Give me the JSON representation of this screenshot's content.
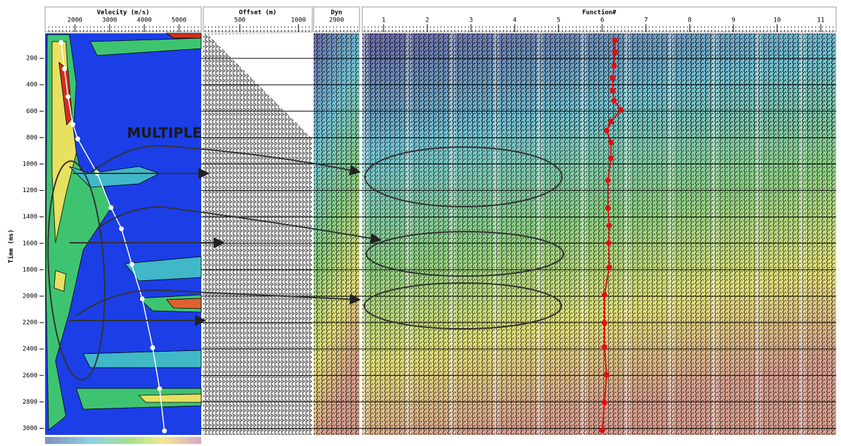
{
  "y_axis": {
    "label": "Time (ms)",
    "lim": [
      0,
      3050
    ],
    "ticks": [
      200,
      400,
      600,
      800,
      1000,
      1200,
      1400,
      1600,
      1800,
      2000,
      2200,
      2400,
      2600,
      2800,
      3000
    ]
  },
  "panels": [
    {
      "title": "Velocity (m/s)",
      "lim": [
        1140,
        5640
      ],
      "ticks": [
        2000,
        3000,
        4000,
        5000
      ]
    },
    {
      "title": "Offset (m)",
      "lim": [
        188,
        1118
      ],
      "ticks": [
        500,
        1000
      ]
    },
    {
      "title": "Dyn",
      "subtitle": "2900"
    },
    {
      "title": "Function#",
      "lim": [
        0.51,
        11.35
      ],
      "ticks": [
        1,
        2,
        3,
        4,
        5,
        6,
        7,
        8,
        9,
        10,
        11
      ]
    }
  ],
  "annotation": "MULTIPLE",
  "velocity_picks": {
    "time": [
      80,
      280,
      490,
      700,
      810,
      1070,
      1330,
      1490,
      1760,
      2020,
      2390,
      2700,
      3020
    ],
    "velocity": [
      1600,
      1700,
      1800,
      1940,
      2080,
      2640,
      3040,
      3340,
      3640,
      3940,
      4240,
      4440,
      4580
    ]
  },
  "function_picks": {
    "time": [
      63,
      153,
      258,
      347,
      442,
      520,
      589,
      678,
      746,
      836,
      956,
      1124,
      1334,
      1466,
      1597,
      1781,
      1991,
      2201,
      2385,
      2595,
      2805,
      3015
    ],
    "function": [
      6.29,
      6.29,
      6.27,
      6.24,
      6.24,
      6.27,
      6.43,
      6.2,
      6.1,
      6.2,
      6.2,
      6.13,
      6.13,
      6.16,
      6.15,
      6.16,
      6.05,
      6.05,
      6.05,
      6.1,
      6.05,
      6.0
    ]
  }
}
